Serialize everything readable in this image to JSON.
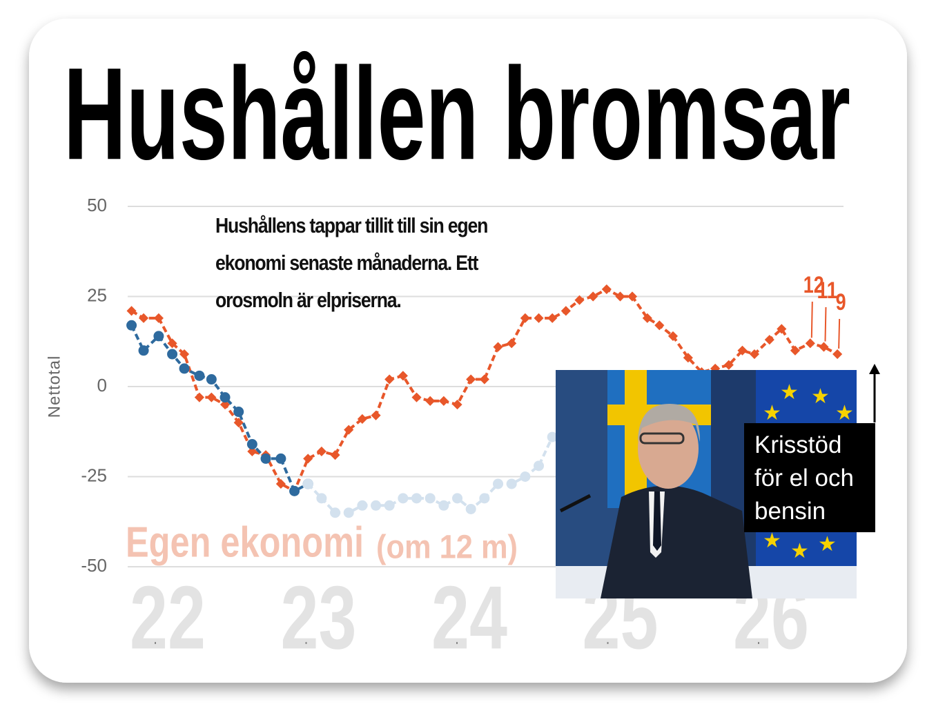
{
  "chart_data": {
    "type": "line",
    "title": "Hushållen bromsar",
    "annotation": "Hushållens tappar tillit till sin egen ekonomi senaste månaderna. Ett orosmoln är elpriserna.",
    "ylabel": "Nettotal",
    "series_label": "Egen ekonomi",
    "series_label_note": "(om 12 m)",
    "callout": "Krisstöd för el och bensin",
    "xlim": [
      21.5,
      26.75
    ],
    "xticks": [
      22,
      23,
      24,
      25,
      26
    ],
    "ylim": [
      -50,
      50
    ],
    "yticks": [
      -50,
      -25,
      0,
      25,
      50
    ],
    "grid": true,
    "series": [
      {
        "color": "#e8572a",
        "marker": "diamond",
        "x": [
          21.76,
          21.84,
          21.94,
          22.03,
          22.11,
          22.21,
          22.29,
          22.38,
          22.47,
          22.56,
          22.65,
          22.75,
          22.84,
          22.93,
          23.02,
          23.11,
          23.2,
          23.29,
          23.38,
          23.47,
          23.56,
          23.65,
          23.74,
          23.83,
          23.92,
          24.01,
          24.1,
          24.19,
          24.28,
          24.37,
          24.46,
          24.55,
          24.64,
          24.73,
          24.82,
          24.91,
          25.0,
          25.08,
          25.18,
          25.26,
          25.35,
          25.45,
          25.54,
          25.63,
          25.72,
          25.81,
          25.89,
          25.99,
          26.07,
          26.16,
          26.26,
          26.35,
          26.44
        ],
        "values": [
          21,
          19,
          19,
          12,
          9,
          -3,
          -3,
          -5,
          -10,
          -18,
          -19,
          -27,
          -29,
          -20,
          -18,
          -19,
          -12,
          -9,
          -8,
          2,
          3,
          -3,
          -4,
          -4,
          -5,
          2,
          2,
          11,
          12,
          19,
          19,
          19,
          21,
          24,
          25,
          27,
          25,
          25,
          19,
          17,
          14,
          8,
          4,
          5,
          6,
          10,
          9,
          13,
          16,
          10,
          12,
          11,
          9
        ],
        "value_labels": [
          null,
          null,
          null,
          null,
          null,
          null,
          null,
          null,
          null,
          null,
          null,
          null,
          null,
          null,
          null,
          null,
          null,
          null,
          null,
          null,
          null,
          null,
          null,
          null,
          null,
          null,
          null,
          null,
          null,
          null,
          null,
          null,
          null,
          null,
          null,
          null,
          null,
          null,
          null,
          null,
          null,
          null,
          null,
          null,
          null,
          null,
          null,
          null,
          null,
          null,
          "12",
          "11",
          "9"
        ]
      },
      {
        "color": "#2e6a9e",
        "marker": "circle",
        "x": [
          21.76,
          21.84,
          21.94,
          22.03,
          22.11,
          22.21,
          22.29,
          22.38,
          22.47,
          22.56,
          22.65,
          22.75,
          22.84,
          22.93
        ],
        "values": [
          17,
          10,
          14,
          9,
          5,
          3,
          2,
          -3,
          -7,
          -16,
          -20,
          -20,
          -29,
          -27
        ]
      },
      {
        "color": "#d3e1ee",
        "marker": "circle",
        "x": [
          22.93,
          23.02,
          23.11,
          23.2,
          23.29,
          23.38,
          23.47,
          23.56,
          23.65,
          23.74,
          23.83,
          23.92,
          24.01,
          24.1,
          24.19,
          24.28,
          24.37,
          24.46,
          24.55
        ],
        "values": [
          -27,
          -31,
          -35,
          -35,
          -33,
          -33,
          -33,
          -31,
          -31,
          -31,
          -33,
          -31,
          -34,
          -31,
          -27,
          -27,
          -25,
          -22,
          -14
        ]
      }
    ]
  }
}
